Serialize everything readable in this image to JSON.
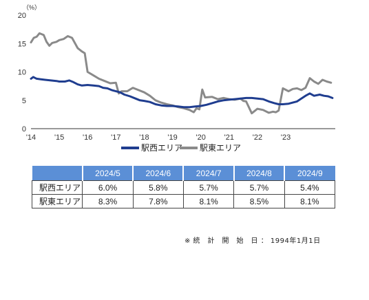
{
  "chart_data": {
    "type": "line",
    "unit_label": "（%）",
    "ylim": [
      0,
      20
    ],
    "y_ticks": [
      "0",
      "5",
      "10",
      "15",
      "20"
    ],
    "x_tick_labels": [
      "'14",
      "'15",
      "'16",
      "'17",
      "'18",
      "'19",
      "'20",
      "'21",
      "'22",
      "'23"
    ],
    "x_tick_years": [
      2014,
      2015,
      2016,
      2017,
      2018,
      2019,
      2020,
      2021,
      2022,
      2023
    ],
    "xlim": [
      2014.0,
      2024.75
    ],
    "grid": false,
    "legend_position": "bottom",
    "series": [
      {
        "name": "駅西エリア",
        "color": "#1f3d8f",
        "x": [
          2014.0,
          2014.08,
          2014.2,
          2014.35,
          2014.5,
          2014.7,
          2014.9,
          2015.0,
          2015.2,
          2015.35,
          2015.5,
          2015.65,
          2015.8,
          2016.0,
          2016.2,
          2016.4,
          2016.55,
          2016.7,
          2016.85,
          2017.0,
          2017.15,
          2017.3,
          2017.5,
          2017.7,
          2017.85,
          2018.0,
          2018.2,
          2018.4,
          2018.6,
          2018.8,
          2019.0,
          2019.2,
          2019.4,
          2019.6,
          2019.8,
          2020.0,
          2020.2,
          2020.4,
          2020.6,
          2020.8,
          2021.0,
          2021.2,
          2021.4,
          2021.6,
          2021.8,
          2022.0,
          2022.2,
          2022.4,
          2022.6,
          2022.75,
          2022.9,
          2023.1,
          2023.25,
          2023.4,
          2023.55,
          2023.7,
          2023.85,
          2024.0,
          2024.2,
          2024.35,
          2024.5,
          2024.65
        ],
        "y": [
          8.8,
          9.1,
          8.8,
          8.7,
          8.6,
          8.5,
          8.4,
          8.3,
          8.3,
          8.5,
          8.2,
          7.8,
          7.6,
          7.7,
          7.6,
          7.5,
          7.2,
          7.1,
          6.8,
          6.6,
          6.4,
          6.0,
          5.7,
          5.3,
          5.0,
          4.9,
          4.7,
          4.3,
          4.1,
          4.0,
          4.0,
          3.9,
          3.8,
          3.8,
          3.9,
          4.0,
          4.2,
          4.5,
          4.8,
          5.0,
          5.1,
          5.2,
          5.3,
          5.4,
          5.4,
          5.3,
          5.2,
          4.8,
          4.5,
          4.3,
          4.3,
          4.4,
          4.6,
          4.8,
          5.3,
          5.8,
          6.2,
          5.8,
          6.0,
          5.8,
          5.7,
          5.4
        ]
      },
      {
        "name": "駅東エリア",
        "color": "#8a8a8a",
        "x": [
          2014.0,
          2014.1,
          2014.2,
          2014.3,
          2014.45,
          2014.55,
          2014.65,
          2014.75,
          2014.9,
          2015.0,
          2015.15,
          2015.3,
          2015.45,
          2015.55,
          2015.65,
          2015.8,
          2015.9,
          2016.0,
          2016.2,
          2016.4,
          2016.6,
          2016.8,
          2017.0,
          2017.1,
          2017.2,
          2017.4,
          2017.6,
          2017.8,
          2018.0,
          2018.2,
          2018.4,
          2018.6,
          2018.8,
          2019.0,
          2019.2,
          2019.4,
          2019.6,
          2019.75,
          2019.85,
          2019.95,
          2020.05,
          2020.15,
          2020.4,
          2020.6,
          2020.8,
          2021.0,
          2021.2,
          2021.4,
          2021.5,
          2021.6,
          2021.8,
          2022.0,
          2022.2,
          2022.4,
          2022.55,
          2022.65,
          2022.75,
          2022.9,
          2023.1,
          2023.25,
          2023.4,
          2023.55,
          2023.7,
          2023.85,
          2024.0,
          2024.15,
          2024.3,
          2024.45,
          2024.6
        ],
        "y": [
          15.2,
          16.0,
          16.2,
          16.8,
          16.5,
          15.3,
          14.6,
          15.1,
          15.3,
          15.6,
          15.8,
          16.3,
          16.0,
          15.1,
          14.2,
          13.6,
          13.3,
          10.0,
          9.4,
          8.8,
          8.4,
          8.0,
          8.1,
          6.2,
          6.6,
          6.6,
          7.2,
          6.8,
          6.4,
          5.8,
          5.0,
          4.6,
          4.3,
          4.1,
          3.8,
          3.6,
          3.3,
          2.9,
          3.6,
          3.4,
          6.9,
          5.5,
          5.6,
          5.2,
          5.4,
          5.2,
          5.1,
          5.3,
          4.9,
          4.8,
          2.7,
          3.5,
          3.3,
          2.8,
          3.0,
          2.9,
          3.2,
          7.1,
          6.6,
          7.0,
          7.1,
          6.8,
          7.2,
          8.9,
          8.3,
          7.9,
          8.6,
          8.3,
          8.1
        ]
      }
    ]
  },
  "table": {
    "headers": [
      "",
      "2024/5",
      "2024/6",
      "2024/7",
      "2024/8",
      "2024/9"
    ],
    "rows": [
      {
        "label": "駅西エリア",
        "values": [
          "6.0",
          "5.8",
          "5.7",
          "5.7",
          "5.4"
        ]
      },
      {
        "label": "駅東エリア",
        "values": [
          "8.3",
          "7.8",
          "8.1",
          "8.5",
          "8.1"
        ]
      }
    ],
    "value_suffix": "%"
  },
  "note": "※ 統　計　開　始　日 ： 1994年1月1日"
}
